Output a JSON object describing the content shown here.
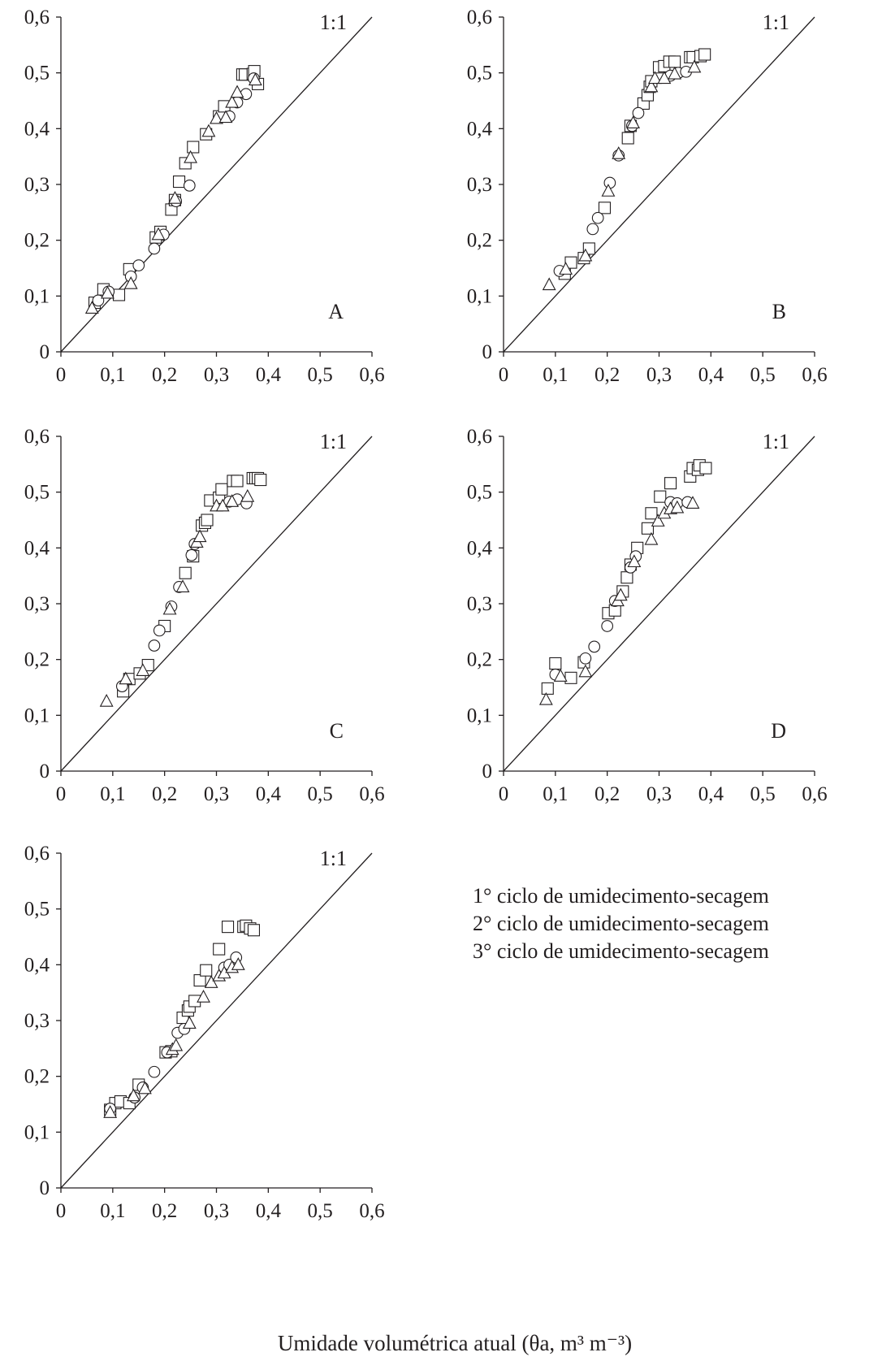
{
  "chart_data": [
    {
      "type": "scatter",
      "panel_label": "A",
      "reference_label": "1:1",
      "xlim": [
        0,
        0.6
      ],
      "ylim": [
        0,
        0.6
      ],
      "x_ticks": [
        "0",
        "0,1",
        "0,2",
        "0,3",
        "0,4",
        "0,5",
        "0,6"
      ],
      "y_ticks": [
        "0",
        "0,1",
        "0,2",
        "0,3",
        "0,4",
        "0,5",
        "0,6"
      ],
      "series": [
        {
          "name": "1° ciclo de umidecimento-secagem",
          "marker": "square",
          "points": [
            [
              0.065,
              0.088
            ],
            [
              0.082,
              0.112
            ],
            [
              0.112,
              0.102
            ],
            [
              0.132,
              0.148
            ],
            [
              0.183,
              0.205
            ],
            [
              0.192,
              0.215
            ],
            [
              0.213,
              0.255
            ],
            [
              0.22,
              0.272
            ],
            [
              0.228,
              0.305
            ],
            [
              0.24,
              0.338
            ],
            [
              0.255,
              0.367
            ],
            [
              0.28,
              0.39
            ],
            [
              0.305,
              0.422
            ],
            [
              0.315,
              0.44
            ],
            [
              0.35,
              0.497
            ],
            [
              0.355,
              0.497
            ],
            [
              0.37,
              0.498
            ],
            [
              0.373,
              0.503
            ],
            [
              0.38,
              0.48
            ]
          ]
        },
        {
          "name": "2° ciclo de umidecimento-secagem",
          "marker": "circle",
          "points": [
            [
              0.072,
              0.092
            ],
            [
              0.092,
              0.108
            ],
            [
              0.135,
              0.135
            ],
            [
              0.15,
              0.155
            ],
            [
              0.18,
              0.185
            ],
            [
              0.198,
              0.21
            ],
            [
              0.222,
              0.27
            ],
            [
              0.248,
              0.298
            ],
            [
              0.325,
              0.422
            ],
            [
              0.34,
              0.447
            ],
            [
              0.357,
              0.462
            ],
            [
              0.372,
              0.49
            ]
          ]
        },
        {
          "name": "3° ciclo de umidecimento-secagem",
          "marker": "triangle",
          "points": [
            [
              0.06,
              0.078
            ],
            [
              0.09,
              0.105
            ],
            [
              0.135,
              0.122
            ],
            [
              0.188,
              0.21
            ],
            [
              0.22,
              0.275
            ],
            [
              0.25,
              0.348
            ],
            [
              0.285,
              0.395
            ],
            [
              0.3,
              0.418
            ],
            [
              0.318,
              0.42
            ],
            [
              0.33,
              0.447
            ],
            [
              0.34,
              0.465
            ],
            [
              0.375,
              0.487
            ]
          ]
        }
      ]
    },
    {
      "type": "scatter",
      "panel_label": "B",
      "reference_label": "1:1",
      "xlim": [
        0,
        0.6
      ],
      "ylim": [
        0,
        0.6
      ],
      "x_ticks": [
        "0",
        "0,1",
        "0,2",
        "0,3",
        "0,4",
        "0,5",
        "0,6"
      ],
      "y_ticks": [
        "0",
        "0,1",
        "0,2",
        "0,3",
        "0,4",
        "0,5",
        "0,6"
      ],
      "series": [
        {
          "name": "1° ciclo de umidecimento-secagem",
          "marker": "square",
          "points": [
            [
              0.118,
              0.14
            ],
            [
              0.13,
              0.16
            ],
            [
              0.155,
              0.168
            ],
            [
              0.165,
              0.185
            ],
            [
              0.195,
              0.258
            ],
            [
              0.24,
              0.383
            ],
            [
              0.245,
              0.405
            ],
            [
              0.27,
              0.445
            ],
            [
              0.278,
              0.46
            ],
            [
              0.282,
              0.475
            ],
            [
              0.285,
              0.485
            ],
            [
              0.3,
              0.51
            ],
            [
              0.31,
              0.512
            ],
            [
              0.32,
              0.52
            ],
            [
              0.33,
              0.52
            ],
            [
              0.36,
              0.528
            ],
            [
              0.365,
              0.528
            ],
            [
              0.38,
              0.53
            ],
            [
              0.388,
              0.533
            ]
          ]
        },
        {
          "name": "2° ciclo de umidecimento-secagem",
          "marker": "circle",
          "points": [
            [
              0.108,
              0.145
            ],
            [
              0.172,
              0.22
            ],
            [
              0.182,
              0.24
            ],
            [
              0.205,
              0.303
            ],
            [
              0.222,
              0.352
            ],
            [
              0.248,
              0.405
            ],
            [
              0.26,
              0.428
            ],
            [
              0.322,
              0.495
            ],
            [
              0.337,
              0.5
            ],
            [
              0.352,
              0.502
            ]
          ]
        },
        {
          "name": "3° ciclo de umidecimento-secagem",
          "marker": "triangle",
          "points": [
            [
              0.088,
              0.12
            ],
            [
              0.12,
              0.148
            ],
            [
              0.158,
              0.172
            ],
            [
              0.202,
              0.288
            ],
            [
              0.222,
              0.355
            ],
            [
              0.25,
              0.41
            ],
            [
              0.285,
              0.475
            ],
            [
              0.292,
              0.49
            ],
            [
              0.31,
              0.49
            ],
            [
              0.33,
              0.498
            ],
            [
              0.368,
              0.51
            ]
          ]
        }
      ]
    },
    {
      "type": "scatter",
      "panel_label": "C",
      "reference_label": "1:1",
      "xlim": [
        0,
        0.6
      ],
      "ylim": [
        0,
        0.6
      ],
      "x_ticks": [
        "0",
        "0,1",
        "0,2",
        "0,3",
        "0,4",
        "0,5",
        "0,6"
      ],
      "y_ticks": [
        "0",
        "0,1",
        "0,2",
        "0,3",
        "0,4",
        "0,5",
        "0,6"
      ],
      "series": [
        {
          "name": "1° ciclo de umidecimento-secagem",
          "marker": "square",
          "points": [
            [
              0.12,
              0.143
            ],
            [
              0.132,
              0.165
            ],
            [
              0.152,
              0.175
            ],
            [
              0.168,
              0.19
            ],
            [
              0.2,
              0.26
            ],
            [
              0.24,
              0.355
            ],
            [
              0.255,
              0.385
            ],
            [
              0.272,
              0.44
            ],
            [
              0.278,
              0.445
            ],
            [
              0.282,
              0.45
            ],
            [
              0.288,
              0.485
            ],
            [
              0.305,
              0.49
            ],
            [
              0.31,
              0.505
            ],
            [
              0.332,
              0.52
            ],
            [
              0.34,
              0.52
            ],
            [
              0.37,
              0.525
            ],
            [
              0.375,
              0.525
            ],
            [
              0.38,
              0.525
            ],
            [
              0.385,
              0.522
            ]
          ]
        },
        {
          "name": "2° ciclo de umidecimento-secagem",
          "marker": "circle",
          "points": [
            [
              0.118,
              0.152
            ],
            [
              0.18,
              0.225
            ],
            [
              0.19,
              0.252
            ],
            [
              0.213,
              0.295
            ],
            [
              0.228,
              0.33
            ],
            [
              0.252,
              0.387
            ],
            [
              0.258,
              0.407
            ],
            [
              0.325,
              0.483
            ],
            [
              0.34,
              0.487
            ],
            [
              0.358,
              0.48
            ]
          ]
        },
        {
          "name": "3° ciclo de umidecimento-secagem",
          "marker": "triangle",
          "points": [
            [
              0.088,
              0.125
            ],
            [
              0.125,
              0.165
            ],
            [
              0.158,
              0.18
            ],
            [
              0.21,
              0.29
            ],
            [
              0.235,
              0.33
            ],
            [
              0.262,
              0.41
            ],
            [
              0.268,
              0.42
            ],
            [
              0.3,
              0.475
            ],
            [
              0.312,
              0.475
            ],
            [
              0.33,
              0.483
            ],
            [
              0.36,
              0.492
            ]
          ]
        }
      ]
    },
    {
      "type": "scatter",
      "panel_label": "D",
      "reference_label": "1:1",
      "xlim": [
        0,
        0.6
      ],
      "ylim": [
        0,
        0.6
      ],
      "x_ticks": [
        "0",
        "0,1",
        "0,2",
        "0,3",
        "0,4",
        "0,5",
        "0,6"
      ],
      "y_ticks": [
        "0",
        "0,1",
        "0,2",
        "0,3",
        "0,4",
        "0,5",
        "0,6"
      ],
      "series": [
        {
          "name": "1° ciclo de umidecimento-secagem",
          "marker": "square",
          "points": [
            [
              0.085,
              0.148
            ],
            [
              0.1,
              0.193
            ],
            [
              0.13,
              0.167
            ],
            [
              0.155,
              0.195
            ],
            [
              0.202,
              0.283
            ],
            [
              0.215,
              0.288
            ],
            [
              0.23,
              0.322
            ],
            [
              0.238,
              0.347
            ],
            [
              0.245,
              0.37
            ],
            [
              0.258,
              0.4
            ],
            [
              0.278,
              0.435
            ],
            [
              0.285,
              0.462
            ],
            [
              0.302,
              0.492
            ],
            [
              0.322,
              0.516
            ],
            [
              0.36,
              0.528
            ],
            [
              0.365,
              0.543
            ],
            [
              0.375,
              0.54
            ],
            [
              0.378,
              0.548
            ],
            [
              0.39,
              0.543
            ]
          ]
        },
        {
          "name": "2° ciclo de umidecimento-secagem",
          "marker": "circle",
          "points": [
            [
              0.1,
              0.173
            ],
            [
              0.158,
              0.202
            ],
            [
              0.175,
              0.223
            ],
            [
              0.2,
              0.26
            ],
            [
              0.215,
              0.305
            ],
            [
              0.245,
              0.365
            ],
            [
              0.255,
              0.385
            ],
            [
              0.322,
              0.482
            ],
            [
              0.335,
              0.48
            ],
            [
              0.355,
              0.482
            ]
          ]
        },
        {
          "name": "3° ciclo de umidecimento-secagem",
          "marker": "triangle",
          "points": [
            [
              0.082,
              0.128
            ],
            [
              0.11,
              0.17
            ],
            [
              0.158,
              0.178
            ],
            [
              0.22,
              0.305
            ],
            [
              0.226,
              0.315
            ],
            [
              0.252,
              0.375
            ],
            [
              0.285,
              0.415
            ],
            [
              0.298,
              0.448
            ],
            [
              0.31,
              0.462
            ],
            [
              0.322,
              0.47
            ],
            [
              0.335,
              0.472
            ],
            [
              0.365,
              0.48
            ]
          ]
        }
      ]
    },
    {
      "type": "scatter",
      "panel_label": "",
      "reference_label": "1:1",
      "xlim": [
        0,
        0.6
      ],
      "ylim": [
        0,
        0.6
      ],
      "xlabel": "Umidade volumétrica atual (θa, m³ m⁻³)",
      "x_ticks": [
        "0",
        "0,1",
        "0,2",
        "0,3",
        "0,4",
        "0,5",
        "0,6"
      ],
      "y_ticks": [
        "0",
        "0,1",
        "0,2",
        "0,3",
        "0,4",
        "0,5",
        "0,6"
      ],
      "series": [
        {
          "name": "1° ciclo de umidecimento-secagem",
          "marker": "square",
          "points": [
            [
              0.095,
              0.14
            ],
            [
              0.105,
              0.152
            ],
            [
              0.115,
              0.155
            ],
            [
              0.132,
              0.152
            ],
            [
              0.15,
              0.185
            ],
            [
              0.202,
              0.243
            ],
            [
              0.213,
              0.245
            ],
            [
              0.235,
              0.305
            ],
            [
              0.245,
              0.318
            ],
            [
              0.248,
              0.325
            ],
            [
              0.258,
              0.335
            ],
            [
              0.268,
              0.372
            ],
            [
              0.28,
              0.39
            ],
            [
              0.305,
              0.428
            ],
            [
              0.322,
              0.468
            ],
            [
              0.352,
              0.468
            ],
            [
              0.357,
              0.47
            ],
            [
              0.365,
              0.465
            ],
            [
              0.372,
              0.462
            ]
          ]
        },
        {
          "name": "2° ciclo de umidecimento-secagem",
          "marker": "circle",
          "points": [
            [
              0.095,
              0.142
            ],
            [
              0.142,
              0.162
            ],
            [
              0.158,
              0.18
            ],
            [
              0.18,
              0.208
            ],
            [
              0.205,
              0.243
            ],
            [
              0.225,
              0.278
            ],
            [
              0.238,
              0.285
            ],
            [
              0.315,
              0.395
            ],
            [
              0.325,
              0.4
            ],
            [
              0.338,
              0.413
            ]
          ]
        },
        {
          "name": "3° ciclo de umidecimento-secagem",
          "marker": "triangle",
          "points": [
            [
              0.095,
              0.135
            ],
            [
              0.14,
              0.165
            ],
            [
              0.162,
              0.178
            ],
            [
              0.215,
              0.248
            ],
            [
              0.222,
              0.255
            ],
            [
              0.248,
              0.295
            ],
            [
              0.275,
              0.342
            ],
            [
              0.29,
              0.368
            ],
            [
              0.305,
              0.38
            ],
            [
              0.315,
              0.385
            ],
            [
              0.33,
              0.395
            ],
            [
              0.342,
              0.4
            ]
          ]
        }
      ]
    }
  ],
  "legend": {
    "items": [
      {
        "label": "1° ciclo de umidecimento-secagem",
        "marker": "square"
      },
      {
        "label": "2° ciclo de umidecimento-secagem",
        "marker": "circle"
      },
      {
        "label": "3° ciclo de umidecimento-secagem",
        "marker": "triangle"
      }
    ]
  }
}
